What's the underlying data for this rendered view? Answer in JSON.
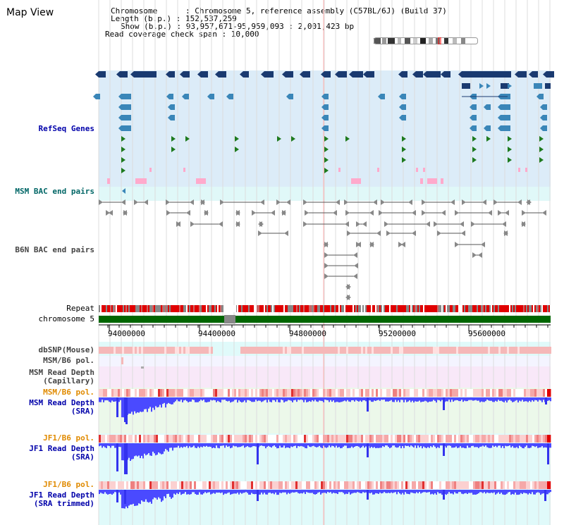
{
  "header": {
    "title": "Map View",
    "chromosome_line": "Chromosome      : Chromosome 5, reference assembly (C57BL/6J) (Build 37)",
    "length_line": "Length (b.p.) : 152,537,259",
    "show_line": "Show (b.p.) : 93,957,671-95,959,093 : 2,001,423 bp",
    "coverage_line": "Read coverage check span : 10,000"
  },
  "tracks": {
    "refseq": "RefSeq Genes",
    "msm_bac": "MSM BAC end pairs",
    "b6n_bac": "B6N BAC end pairs",
    "repeat": "Repeat",
    "chromosome": "chromosome 5",
    "dbsnp": "dbSNP(Mouse)",
    "msm_b6_pol_1": "MSM/B6 pol.",
    "msm_read_depth_cap": "MSM Read Depth\n(Capillary)",
    "msm_b6_pol_2": "MSM/B6 pol.",
    "msm_read_depth_sra": "MSM Read Depth\n(SRA)",
    "jf1_b6_pol_1": "JF1/B6 pol.",
    "jf1_read_depth_sra": "JF1 Read Depth\n(SRA)",
    "jf1_b6_pol_2": "JF1/B6 pol.",
    "jf1_read_depth_trim": "JF1 Read Depth\n(SRA trimmed)"
  },
  "axis": {
    "ticks": [
      "94000000",
      "94400000",
      "94800000",
      "95200000",
      "95600000"
    ]
  },
  "colors": {
    "refseq_bg": "#dcecf8",
    "bac_bg": "#e0f8f8",
    "gene_dark": "#1a3a70",
    "gene_mid": "#3a86b8",
    "gene_green": "#1e7a1e",
    "repeat_red": "#e00000",
    "chromosome_green": "#006600",
    "snp_pink": "#f5b8b8",
    "depth_blue": "#4a4aff",
    "depth_bg_green": "#ecf8ea",
    "depth_bg_cyan": "#e0fafa",
    "capillary_bg": "#f8e8f8"
  }
}
